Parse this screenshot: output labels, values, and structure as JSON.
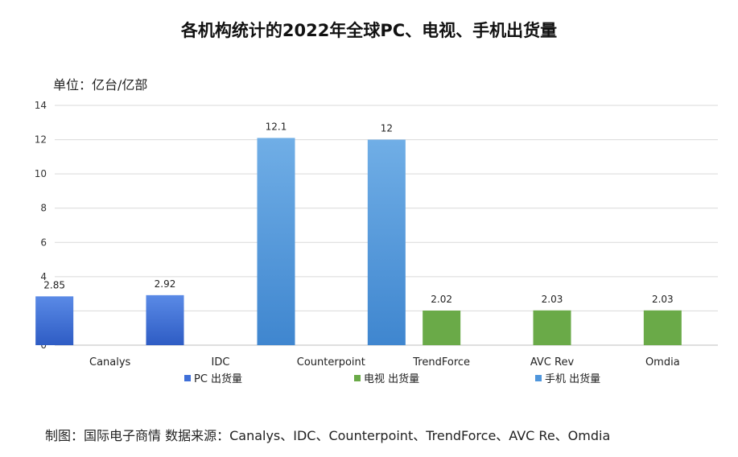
{
  "chart_data": {
    "type": "bar",
    "title": "各机构统计的2022年全球PC、电视、手机出货量",
    "unit_label": "单位：亿台/亿部",
    "categories": [
      "Canalys",
      "IDC",
      "Counterpoint",
      "TrendForce",
      "AVC Rev",
      "Omdia"
    ],
    "series": [
      {
        "name": "PC 出货量",
        "color": "#3f6fd8",
        "values": [
          2.85,
          2.92,
          null,
          null,
          null,
          null
        ]
      },
      {
        "name": "电视 出货量",
        "color": "#6aaa48",
        "values": [
          null,
          null,
          null,
          2.02,
          2.03,
          2.03
        ]
      },
      {
        "name": "手机 出货量",
        "color": "#4f96dc",
        "values": [
          null,
          12.1,
          12,
          null,
          null,
          null
        ]
      }
    ],
    "data_labels": {
      "Canalys": [
        "2.85"
      ],
      "IDC": [
        "2.92",
        "12.1"
      ],
      "Counterpoint": [
        "12"
      ],
      "TrendForce": [
        "2.02"
      ],
      "AVC Rev": [
        "2.03"
      ],
      "Omdia": [
        "2.03"
      ]
    },
    "ylim": [
      0,
      14
    ],
    "yticks": [
      0,
      2,
      4,
      6,
      8,
      10,
      12,
      14
    ],
    "grid": true,
    "legend_position": "bottom"
  },
  "source_text": "制图：国际电子商情  数据来源：Canalys、IDC、Counterpoint、TrendForce、AVC Re、Omdia"
}
